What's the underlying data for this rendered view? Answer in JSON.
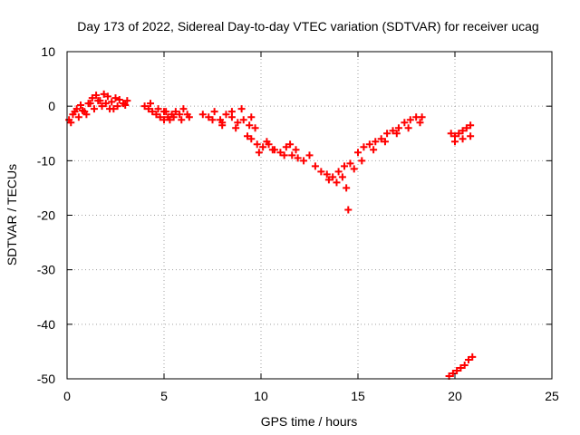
{
  "chart_data": {
    "type": "scatter",
    "title": "Day 173 of 2022, Sidereal Day-to-day VTEC variation (SDTVAR) for receiver ucag",
    "xlabel": "GPS time / hours",
    "ylabel": "SDTVAR / TECUs",
    "xlim": [
      0,
      25
    ],
    "ylim": [
      -50,
      10
    ],
    "xticks": [
      0,
      5,
      10,
      15,
      20,
      25
    ],
    "yticks": [
      -50,
      -40,
      -30,
      -20,
      -10,
      0,
      10
    ],
    "grid": true,
    "marker": "plus",
    "series_color": "#ff0000",
    "series": [
      {
        "name": "SDTVAR",
        "x": [
          0.1,
          0.3,
          0.5,
          0.7,
          0.9,
          1.1,
          1.3,
          1.5,
          1.7,
          1.9,
          2.1,
          2.3,
          2.5,
          2.7,
          2.9,
          3.1,
          0.2,
          0.6,
          1.0,
          1.4,
          1.8,
          2.2,
          2.6,
          3.0,
          0.4,
          0.8,
          1.2,
          1.6,
          2.0,
          2.4,
          4.0,
          4.2,
          4.4,
          4.6,
          4.8,
          5.0,
          5.2,
          5.4,
          5.6,
          5.8,
          6.0,
          6.2,
          4.3,
          4.7,
          5.1,
          5.5,
          5.9,
          6.3,
          5.0,
          5.3,
          7.0,
          7.3,
          7.6,
          7.9,
          8.2,
          8.5,
          8.8,
          9.1,
          9.4,
          9.7,
          7.5,
          8.0,
          8.5,
          9.0,
          9.5,
          8.0,
          8.7,
          9.3,
          9.5,
          9.8,
          10.1,
          10.4,
          10.7,
          11.0,
          11.3,
          11.6,
          11.9,
          12.2,
          9.9,
          10.6,
          11.2,
          11.8,
          10.3,
          11.5,
          12.5,
          12.8,
          13.1,
          13.4,
          13.7,
          14.0,
          14.3,
          14.6,
          14.8,
          13.5,
          13.9,
          14.2,
          14.4,
          14.5,
          15.0,
          15.3,
          15.6,
          15.9,
          16.2,
          16.5,
          16.8,
          17.1,
          17.4,
          17.7,
          18.0,
          18.3,
          15.2,
          15.8,
          16.4,
          17.0,
          17.6,
          18.2,
          19.8,
          20.0,
          20.2,
          20.4,
          20.6,
          20.8,
          20.0,
          20.4,
          20.8,
          19.7,
          19.9,
          20.1,
          20.3,
          20.5,
          20.7,
          20.9
        ],
        "y": [
          -2.5,
          -1.5,
          -0.5,
          0.2,
          -1.0,
          0.5,
          1.5,
          2.0,
          1.0,
          2.2,
          1.8,
          0.8,
          1.5,
          1.2,
          0.5,
          1.0,
          -3.0,
          -2.0,
          -1.5,
          -0.5,
          0.0,
          -0.5,
          0.0,
          0.2,
          -1.0,
          -0.8,
          0.5,
          1.0,
          0.5,
          -0.5,
          0.0,
          -0.5,
          -1.0,
          -1.5,
          -2.0,
          -2.5,
          -2.0,
          -1.5,
          -1.0,
          -1.5,
          -0.5,
          -1.5,
          0.5,
          -0.5,
          -1.0,
          -2.0,
          -2.5,
          -2.0,
          -1.0,
          -2.5,
          -1.5,
          -2.0,
          -1.0,
          -2.5,
          -1.5,
          -2.0,
          -3.0,
          -2.5,
          -3.5,
          -4.0,
          -2.5,
          -3.5,
          -1.0,
          -0.5,
          -2.0,
          -3.0,
          -4.0,
          -5.5,
          -6.0,
          -7.0,
          -7.5,
          -7.0,
          -8.0,
          -8.5,
          -7.5,
          -9.0,
          -9.5,
          -10.0,
          -8.5,
          -8.0,
          -9.0,
          -8.0,
          -6.5,
          -7.0,
          -9.0,
          -11.0,
          -12.0,
          -12.5,
          -13.0,
          -12.0,
          -11.0,
          -10.5,
          -11.5,
          -13.5,
          -14.0,
          -13.0,
          -15.0,
          -19.0,
          -8.5,
          -7.5,
          -7.0,
          -6.5,
          -6.0,
          -5.0,
          -4.5,
          -4.0,
          -3.0,
          -2.5,
          -2.0,
          -2.0,
          -10.0,
          -8.0,
          -6.5,
          -5.0,
          -4.0,
          -3.0,
          -5.0,
          -5.5,
          -5.0,
          -4.5,
          -4.0,
          -3.5,
          -6.5,
          -6.0,
          -5.5,
          -49.5,
          -49.0,
          -48.5,
          -48.0,
          -47.5,
          -46.5,
          -46.0
        ]
      }
    ]
  }
}
